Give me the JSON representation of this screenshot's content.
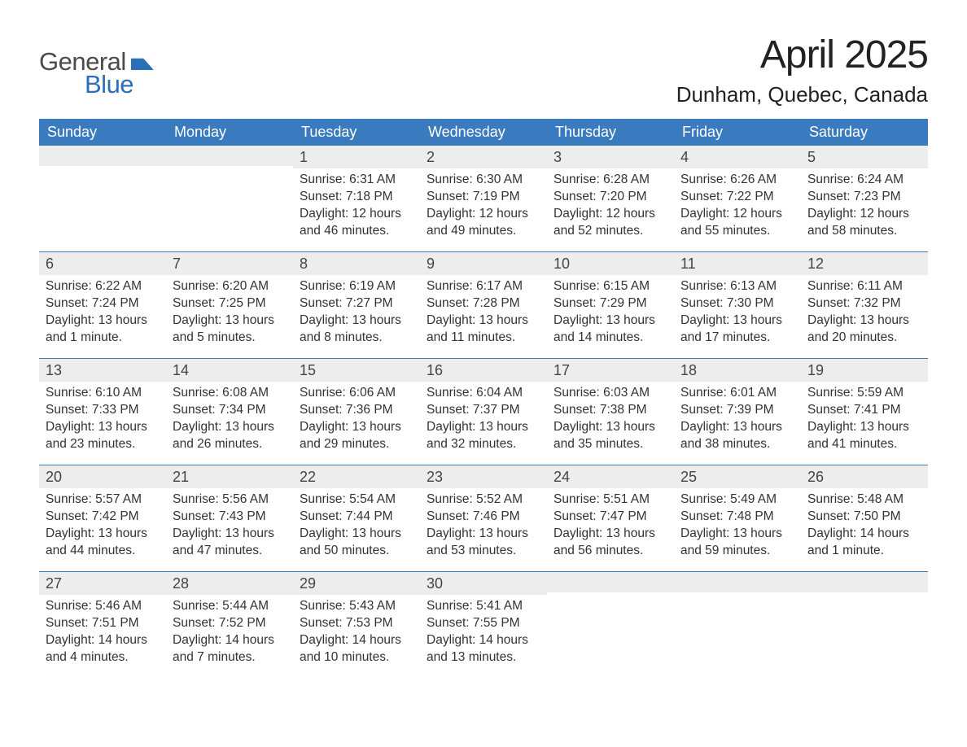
{
  "logo": {
    "text1": "General",
    "text2": "Blue"
  },
  "title": "April 2025",
  "location": "Dunham, Quebec, Canada",
  "styling": {
    "header_bg": "#3a7bbf",
    "header_text": "#ffffff",
    "daynum_bg": "#ededed",
    "body_text": "#333333",
    "week_border": "#3a7bbf",
    "title_fontsize": 48,
    "location_fontsize": 26,
    "weekday_fontsize": 18,
    "cell_fontsize": 15.5,
    "page_bg": "#ffffff",
    "logo_accent": "#2d6fb6",
    "logo_gray": "#4b4b4b"
  },
  "weekdays": [
    "Sunday",
    "Monday",
    "Tuesday",
    "Wednesday",
    "Thursday",
    "Friday",
    "Saturday"
  ],
  "weeks": [
    [
      {
        "n": "",
        "sr": "",
        "ss": "",
        "dl": ""
      },
      {
        "n": "",
        "sr": "",
        "ss": "",
        "dl": ""
      },
      {
        "n": "1",
        "sr": "Sunrise: 6:31 AM",
        "ss": "Sunset: 7:18 PM",
        "dl": "Daylight: 12 hours and 46 minutes."
      },
      {
        "n": "2",
        "sr": "Sunrise: 6:30 AM",
        "ss": "Sunset: 7:19 PM",
        "dl": "Daylight: 12 hours and 49 minutes."
      },
      {
        "n": "3",
        "sr": "Sunrise: 6:28 AM",
        "ss": "Sunset: 7:20 PM",
        "dl": "Daylight: 12 hours and 52 minutes."
      },
      {
        "n": "4",
        "sr": "Sunrise: 6:26 AM",
        "ss": "Sunset: 7:22 PM",
        "dl": "Daylight: 12 hours and 55 minutes."
      },
      {
        "n": "5",
        "sr": "Sunrise: 6:24 AM",
        "ss": "Sunset: 7:23 PM",
        "dl": "Daylight: 12 hours and 58 minutes."
      }
    ],
    [
      {
        "n": "6",
        "sr": "Sunrise: 6:22 AM",
        "ss": "Sunset: 7:24 PM",
        "dl": "Daylight: 13 hours and 1 minute."
      },
      {
        "n": "7",
        "sr": "Sunrise: 6:20 AM",
        "ss": "Sunset: 7:25 PM",
        "dl": "Daylight: 13 hours and 5 minutes."
      },
      {
        "n": "8",
        "sr": "Sunrise: 6:19 AM",
        "ss": "Sunset: 7:27 PM",
        "dl": "Daylight: 13 hours and 8 minutes."
      },
      {
        "n": "9",
        "sr": "Sunrise: 6:17 AM",
        "ss": "Sunset: 7:28 PM",
        "dl": "Daylight: 13 hours and 11 minutes."
      },
      {
        "n": "10",
        "sr": "Sunrise: 6:15 AM",
        "ss": "Sunset: 7:29 PM",
        "dl": "Daylight: 13 hours and 14 minutes."
      },
      {
        "n": "11",
        "sr": "Sunrise: 6:13 AM",
        "ss": "Sunset: 7:30 PM",
        "dl": "Daylight: 13 hours and 17 minutes."
      },
      {
        "n": "12",
        "sr": "Sunrise: 6:11 AM",
        "ss": "Sunset: 7:32 PM",
        "dl": "Daylight: 13 hours and 20 minutes."
      }
    ],
    [
      {
        "n": "13",
        "sr": "Sunrise: 6:10 AM",
        "ss": "Sunset: 7:33 PM",
        "dl": "Daylight: 13 hours and 23 minutes."
      },
      {
        "n": "14",
        "sr": "Sunrise: 6:08 AM",
        "ss": "Sunset: 7:34 PM",
        "dl": "Daylight: 13 hours and 26 minutes."
      },
      {
        "n": "15",
        "sr": "Sunrise: 6:06 AM",
        "ss": "Sunset: 7:36 PM",
        "dl": "Daylight: 13 hours and 29 minutes."
      },
      {
        "n": "16",
        "sr": "Sunrise: 6:04 AM",
        "ss": "Sunset: 7:37 PM",
        "dl": "Daylight: 13 hours and 32 minutes."
      },
      {
        "n": "17",
        "sr": "Sunrise: 6:03 AM",
        "ss": "Sunset: 7:38 PM",
        "dl": "Daylight: 13 hours and 35 minutes."
      },
      {
        "n": "18",
        "sr": "Sunrise: 6:01 AM",
        "ss": "Sunset: 7:39 PM",
        "dl": "Daylight: 13 hours and 38 minutes."
      },
      {
        "n": "19",
        "sr": "Sunrise: 5:59 AM",
        "ss": "Sunset: 7:41 PM",
        "dl": "Daylight: 13 hours and 41 minutes."
      }
    ],
    [
      {
        "n": "20",
        "sr": "Sunrise: 5:57 AM",
        "ss": "Sunset: 7:42 PM",
        "dl": "Daylight: 13 hours and 44 minutes."
      },
      {
        "n": "21",
        "sr": "Sunrise: 5:56 AM",
        "ss": "Sunset: 7:43 PM",
        "dl": "Daylight: 13 hours and 47 minutes."
      },
      {
        "n": "22",
        "sr": "Sunrise: 5:54 AM",
        "ss": "Sunset: 7:44 PM",
        "dl": "Daylight: 13 hours and 50 minutes."
      },
      {
        "n": "23",
        "sr": "Sunrise: 5:52 AM",
        "ss": "Sunset: 7:46 PM",
        "dl": "Daylight: 13 hours and 53 minutes."
      },
      {
        "n": "24",
        "sr": "Sunrise: 5:51 AM",
        "ss": "Sunset: 7:47 PM",
        "dl": "Daylight: 13 hours and 56 minutes."
      },
      {
        "n": "25",
        "sr": "Sunrise: 5:49 AM",
        "ss": "Sunset: 7:48 PM",
        "dl": "Daylight: 13 hours and 59 minutes."
      },
      {
        "n": "26",
        "sr": "Sunrise: 5:48 AM",
        "ss": "Sunset: 7:50 PM",
        "dl": "Daylight: 14 hours and 1 minute."
      }
    ],
    [
      {
        "n": "27",
        "sr": "Sunrise: 5:46 AM",
        "ss": "Sunset: 7:51 PM",
        "dl": "Daylight: 14 hours and 4 minutes."
      },
      {
        "n": "28",
        "sr": "Sunrise: 5:44 AM",
        "ss": "Sunset: 7:52 PM",
        "dl": "Daylight: 14 hours and 7 minutes."
      },
      {
        "n": "29",
        "sr": "Sunrise: 5:43 AM",
        "ss": "Sunset: 7:53 PM",
        "dl": "Daylight: 14 hours and 10 minutes."
      },
      {
        "n": "30",
        "sr": "Sunrise: 5:41 AM",
        "ss": "Sunset: 7:55 PM",
        "dl": "Daylight: 14 hours and 13 minutes."
      },
      {
        "n": "",
        "sr": "",
        "ss": "",
        "dl": ""
      },
      {
        "n": "",
        "sr": "",
        "ss": "",
        "dl": ""
      },
      {
        "n": "",
        "sr": "",
        "ss": "",
        "dl": ""
      }
    ]
  ]
}
